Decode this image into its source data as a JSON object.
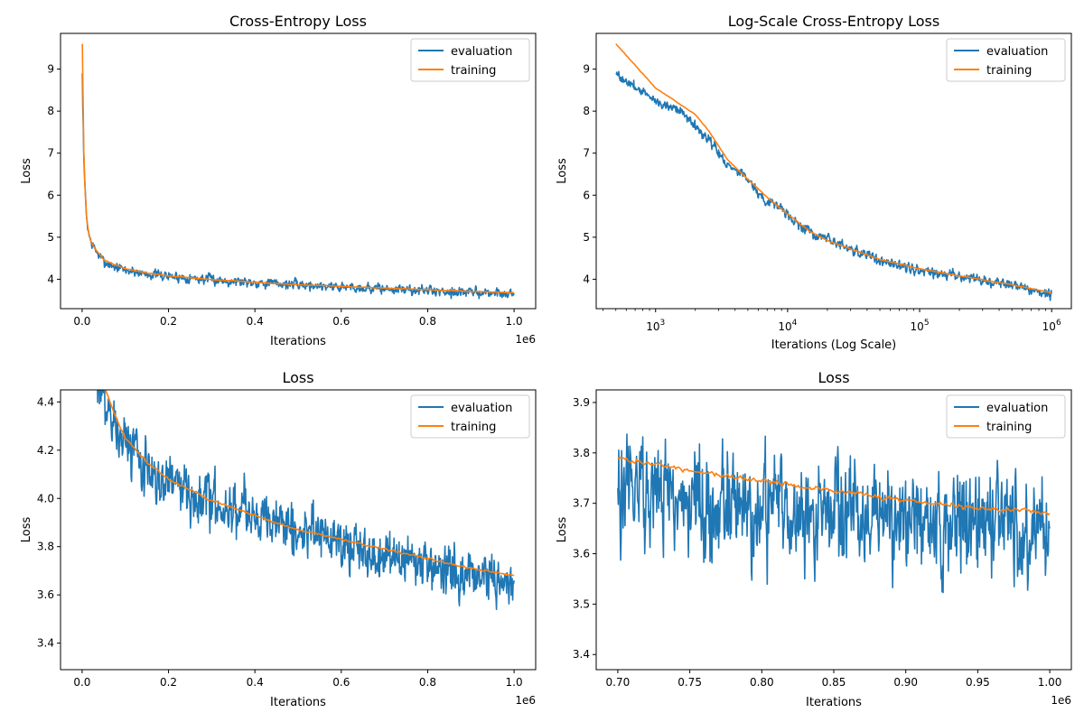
{
  "colors": {
    "evaluation": "#1f77b4",
    "training": "#ff7f0e"
  },
  "chart_data": [
    {
      "type": "line",
      "title": "Cross-Entropy Loss",
      "xlabel": "Iterations",
      "ylabel": "Loss",
      "xscale": "linear",
      "xlim": [
        -50000,
        1050000
      ],
      "ylim": [
        3.3,
        9.85
      ],
      "xticks": [
        0,
        200000,
        400000,
        600000,
        800000,
        1000000
      ],
      "xtick_labels": [
        "0.0",
        "0.2",
        "0.4",
        "0.6",
        "0.8",
        "1.0"
      ],
      "xoffset_label": "1e6",
      "yticks": [
        4,
        5,
        6,
        7,
        8,
        9
      ],
      "ytick_labels": [
        "4",
        "5",
        "6",
        "7",
        "8",
        "9"
      ],
      "legend": "top-right",
      "grid": false,
      "series": [
        {
          "name": "evaluation",
          "noise": 0.1,
          "x": [
            500,
            1000,
            2000,
            5000,
            10000,
            15000,
            20000,
            30000,
            50000,
            75000,
            100000,
            150000,
            200000,
            300000,
            400000,
            500000,
            600000,
            700000,
            800000,
            900000,
            1000000
          ],
          "values": [
            8.9,
            8.25,
            7.9,
            6.5,
            5.5,
            5.1,
            4.9,
            4.7,
            4.42,
            4.3,
            4.22,
            4.13,
            4.07,
            3.99,
            3.93,
            3.87,
            3.82,
            3.77,
            3.73,
            3.69,
            3.66
          ]
        },
        {
          "name": "training",
          "noise": 0.006,
          "x": [
            500,
            1000,
            2000,
            5000,
            10000,
            15000,
            20000,
            30000,
            50000,
            75000,
            100000,
            150000,
            200000,
            300000,
            400000,
            500000,
            600000,
            700000,
            800000,
            900000,
            1000000
          ],
          "values": [
            9.6,
            8.55,
            7.9,
            6.5,
            5.5,
            5.1,
            4.9,
            4.72,
            4.47,
            4.35,
            4.25,
            4.15,
            4.08,
            3.99,
            3.93,
            3.87,
            3.83,
            3.79,
            3.75,
            3.71,
            3.68
          ]
        }
      ]
    },
    {
      "type": "line",
      "title": "Log-Scale Cross-Entropy Loss",
      "xlabel": "Iterations (Log Scale)",
      "ylabel": "Loss",
      "xscale": "log",
      "xlim": [
        355,
        1410000
      ],
      "ylim": [
        3.3,
        9.85
      ],
      "xticks": [
        1000,
        10000,
        100000,
        1000000
      ],
      "xtick_base": "10",
      "xtick_exponents": [
        "3",
        "4",
        "5",
        "6"
      ],
      "yticks": [
        4,
        5,
        6,
        7,
        8,
        9
      ],
      "ytick_labels": [
        "4",
        "5",
        "6",
        "7",
        "8",
        "9"
      ],
      "legend": "top-right",
      "grid": false,
      "series": [
        {
          "name": "evaluation",
          "noise": 0.1,
          "x": [
            500,
            1000,
            1500,
            2500,
            3500,
            5000,
            7000,
            8000,
            10000,
            15000,
            20000,
            30000,
            50000,
            100000,
            200000,
            500000,
            1000000
          ],
          "values": [
            8.88,
            8.25,
            8.05,
            7.35,
            6.72,
            6.4,
            5.78,
            5.82,
            5.5,
            5.1,
            4.92,
            4.72,
            4.45,
            4.22,
            4.07,
            3.85,
            3.66
          ]
        },
        {
          "name": "training",
          "noise": 0.006,
          "x": [
            500,
            1000,
            2000,
            2500,
            3500,
            5000,
            7000,
            10000,
            15000,
            20000,
            30000,
            50000,
            100000,
            200000,
            500000,
            1000000
          ],
          "values": [
            9.6,
            8.55,
            7.92,
            7.55,
            6.85,
            6.38,
            5.95,
            5.55,
            5.12,
            4.92,
            4.72,
            4.47,
            4.25,
            4.08,
            3.87,
            3.68
          ]
        }
      ]
    },
    {
      "type": "line",
      "title": "Loss",
      "xlabel": "Iterations",
      "ylabel": "Loss",
      "xscale": "linear",
      "xlim": [
        -50000,
        1050000
      ],
      "ylim": [
        3.29,
        4.45
      ],
      "xticks": [
        0,
        200000,
        400000,
        600000,
        800000,
        1000000
      ],
      "xtick_labels": [
        "0.0",
        "0.2",
        "0.4",
        "0.6",
        "0.8",
        "1.0"
      ],
      "xoffset_label": "1e6",
      "yticks": [
        3.4,
        3.6,
        3.8,
        4.0,
        4.2,
        4.4
      ],
      "ytick_labels": [
        "3.4",
        "3.6",
        "3.8",
        "4.0",
        "4.2",
        "4.4"
      ],
      "legend": "top-right",
      "grid": false,
      "series": [
        {
          "name": "evaluation",
          "noise": 0.09,
          "x": [
            35000,
            50000,
            75000,
            100000,
            150000,
            200000,
            300000,
            400000,
            500000,
            600000,
            700000,
            800000,
            900000,
            1000000
          ],
          "values": [
            4.52,
            4.42,
            4.3,
            4.22,
            4.13,
            4.07,
            3.99,
            3.93,
            3.87,
            3.82,
            3.77,
            3.73,
            3.69,
            3.66
          ]
        },
        {
          "name": "training",
          "noise": 0.004,
          "x": [
            35000,
            50000,
            75000,
            100000,
            150000,
            200000,
            300000,
            400000,
            500000,
            600000,
            700000,
            800000,
            900000,
            1000000
          ],
          "values": [
            4.6,
            4.47,
            4.35,
            4.25,
            4.15,
            4.08,
            3.99,
            3.93,
            3.87,
            3.83,
            3.79,
            3.75,
            3.71,
            3.68
          ]
        }
      ]
    },
    {
      "type": "line",
      "title": "Loss",
      "xlabel": "Iterations",
      "ylabel": "Loss",
      "xscale": "linear",
      "xlim": [
        685000,
        1015000
      ],
      "ylim": [
        3.37,
        3.925
      ],
      "xticks": [
        700000,
        750000,
        800000,
        850000,
        900000,
        950000,
        1000000
      ],
      "xtick_labels": [
        "0.70",
        "0.75",
        "0.80",
        "0.85",
        "0.90",
        "0.95",
        "1.00"
      ],
      "xoffset_label": "1e6",
      "yticks": [
        3.4,
        3.5,
        3.6,
        3.7,
        3.8,
        3.9
      ],
      "ytick_labels": [
        "3.4",
        "3.5",
        "3.6",
        "3.7",
        "3.8",
        "3.9"
      ],
      "legend": "top-right",
      "grid": false,
      "series": [
        {
          "name": "evaluation",
          "noise": 0.085,
          "x": [
            700000,
            750000,
            800000,
            850000,
            900000,
            950000,
            1000000
          ],
          "values": [
            3.73,
            3.71,
            3.69,
            3.68,
            3.67,
            3.66,
            3.65
          ]
        },
        {
          "name": "training",
          "noise": 0.004,
          "x": [
            700000,
            750000,
            800000,
            850000,
            900000,
            950000,
            1000000
          ],
          "values": [
            3.79,
            3.765,
            3.745,
            3.725,
            3.705,
            3.69,
            3.68
          ]
        }
      ]
    }
  ]
}
